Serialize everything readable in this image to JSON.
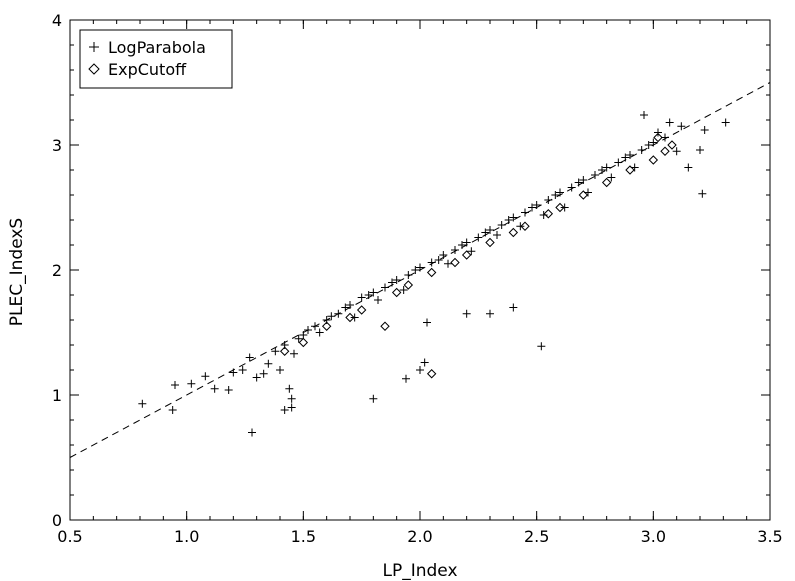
{
  "chart_data": {
    "type": "scatter",
    "xlabel": "LP_Index",
    "ylabel": "PLEC_IndexS",
    "xlim": [
      0.5,
      3.5
    ],
    "ylim": [
      0,
      4
    ],
    "xticks": [
      0.5,
      1.0,
      1.5,
      2.0,
      2.5,
      3.0,
      3.5
    ],
    "xtick_labels": [
      "0.5",
      "1.0",
      "1.5",
      "2.0",
      "2.5",
      "3.0",
      "3.5"
    ],
    "yticks": [
      0,
      1,
      2,
      3,
      4
    ],
    "ytick_labels": [
      "0",
      "1",
      "2",
      "3",
      "4"
    ],
    "grid": false,
    "legend": {
      "position": "top-left",
      "entries": [
        {
          "label": "LogParabola",
          "marker": "plus"
        },
        {
          "label": "ExpCutoff",
          "marker": "diamond"
        }
      ]
    },
    "reference_line": {
      "style": "dashed",
      "slope": 1.0,
      "intercept": 0.0
    },
    "series": [
      {
        "name": "LogParabola",
        "marker": "plus",
        "points": [
          [
            0.81,
            0.93
          ],
          [
            0.94,
            0.88
          ],
          [
            0.95,
            1.08
          ],
          [
            1.02,
            1.09
          ],
          [
            1.08,
            1.15
          ],
          [
            1.12,
            1.05
          ],
          [
            1.18,
            1.04
          ],
          [
            1.2,
            1.18
          ],
          [
            1.24,
            1.2
          ],
          [
            1.27,
            1.3
          ],
          [
            1.28,
            0.7
          ],
          [
            1.3,
            1.14
          ],
          [
            1.33,
            1.17
          ],
          [
            1.35,
            1.25
          ],
          [
            1.38,
            1.35
          ],
          [
            1.4,
            1.2
          ],
          [
            1.42,
            1.4
          ],
          [
            1.42,
            0.88
          ],
          [
            1.44,
            1.05
          ],
          [
            1.45,
            0.9
          ],
          [
            1.45,
            0.97
          ],
          [
            1.46,
            1.33
          ],
          [
            1.48,
            1.45
          ],
          [
            1.5,
            1.48
          ],
          [
            1.52,
            1.52
          ],
          [
            1.55,
            1.55
          ],
          [
            1.57,
            1.5
          ],
          [
            1.6,
            1.6
          ],
          [
            1.62,
            1.63
          ],
          [
            1.65,
            1.65
          ],
          [
            1.68,
            1.7
          ],
          [
            1.7,
            1.72
          ],
          [
            1.72,
            1.62
          ],
          [
            1.75,
            1.78
          ],
          [
            1.78,
            1.8
          ],
          [
            1.8,
            0.97
          ],
          [
            1.8,
            1.82
          ],
          [
            1.82,
            1.76
          ],
          [
            1.85,
            1.86
          ],
          [
            1.88,
            1.9
          ],
          [
            1.9,
            1.92
          ],
          [
            1.93,
            1.84
          ],
          [
            1.94,
            1.13
          ],
          [
            1.95,
            1.96
          ],
          [
            1.98,
            2.0
          ],
          [
            2.0,
            1.2
          ],
          [
            2.0,
            2.02
          ],
          [
            2.02,
            1.26
          ],
          [
            2.03,
            1.58
          ],
          [
            2.05,
            2.06
          ],
          [
            2.08,
            2.08
          ],
          [
            2.1,
            2.12
          ],
          [
            2.12,
            2.05
          ],
          [
            2.15,
            2.16
          ],
          [
            2.18,
            2.2
          ],
          [
            2.2,
            1.65
          ],
          [
            2.2,
            2.22
          ],
          [
            2.22,
            2.15
          ],
          [
            2.25,
            2.26
          ],
          [
            2.28,
            2.3
          ],
          [
            2.3,
            1.65
          ],
          [
            2.3,
            2.32
          ],
          [
            2.33,
            2.28
          ],
          [
            2.35,
            2.36
          ],
          [
            2.38,
            2.4
          ],
          [
            2.4,
            1.7
          ],
          [
            2.4,
            2.42
          ],
          [
            2.43,
            2.35
          ],
          [
            2.45,
            2.46
          ],
          [
            2.48,
            2.5
          ],
          [
            2.5,
            2.52
          ],
          [
            2.52,
            1.39
          ],
          [
            2.53,
            2.44
          ],
          [
            2.55,
            2.56
          ],
          [
            2.58,
            2.6
          ],
          [
            2.6,
            2.62
          ],
          [
            2.62,
            2.5
          ],
          [
            2.65,
            2.66
          ],
          [
            2.68,
            2.7
          ],
          [
            2.7,
            2.72
          ],
          [
            2.72,
            2.62
          ],
          [
            2.75,
            2.76
          ],
          [
            2.78,
            2.8
          ],
          [
            2.8,
            2.82
          ],
          [
            2.82,
            2.74
          ],
          [
            2.85,
            2.86
          ],
          [
            2.88,
            2.9
          ],
          [
            2.9,
            2.92
          ],
          [
            2.92,
            2.82
          ],
          [
            2.95,
            2.96
          ],
          [
            2.96,
            3.24
          ],
          [
            2.98,
            3.0
          ],
          [
            3.0,
            3.02
          ],
          [
            3.02,
            3.1
          ],
          [
            3.05,
            3.06
          ],
          [
            3.07,
            3.18
          ],
          [
            3.1,
            2.95
          ],
          [
            3.12,
            3.15
          ],
          [
            3.15,
            2.82
          ],
          [
            3.2,
            2.96
          ],
          [
            3.21,
            2.61
          ],
          [
            3.22,
            3.12
          ],
          [
            3.31,
            3.18
          ]
        ]
      },
      {
        "name": "ExpCutoff",
        "marker": "diamond",
        "points": [
          [
            1.42,
            1.35
          ],
          [
            1.5,
            1.42
          ],
          [
            1.6,
            1.55
          ],
          [
            1.7,
            1.62
          ],
          [
            1.75,
            1.68
          ],
          [
            1.85,
            1.55
          ],
          [
            1.9,
            1.82
          ],
          [
            1.95,
            1.88
          ],
          [
            2.05,
            1.17
          ],
          [
            2.05,
            1.98
          ],
          [
            2.15,
            2.06
          ],
          [
            2.2,
            2.12
          ],
          [
            2.3,
            2.22
          ],
          [
            2.4,
            2.3
          ],
          [
            2.45,
            2.35
          ],
          [
            2.55,
            2.45
          ],
          [
            2.6,
            2.5
          ],
          [
            2.7,
            2.6
          ],
          [
            2.8,
            2.7
          ],
          [
            2.9,
            2.8
          ],
          [
            3.0,
            2.88
          ],
          [
            3.02,
            3.06
          ],
          [
            3.05,
            2.95
          ],
          [
            3.08,
            3.0
          ]
        ]
      }
    ]
  }
}
